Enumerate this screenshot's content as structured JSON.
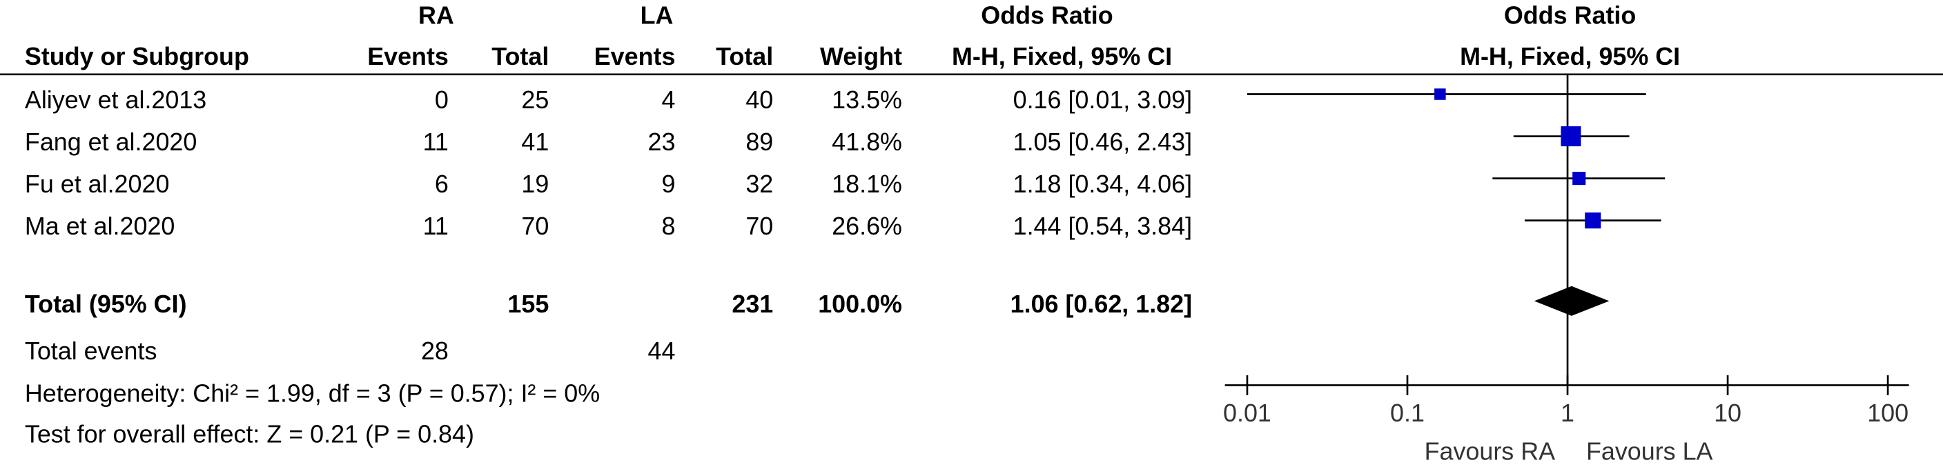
{
  "chart_data": {
    "type": "forest",
    "group_headers": [
      "RA",
      "LA"
    ],
    "effect_header": "Odds Ratio",
    "method_header": "M-H, Fixed, 95% CI",
    "column_headers": [
      "Study or Subgroup",
      "Events",
      "Total",
      "Events",
      "Total",
      "Weight"
    ],
    "studies": [
      {
        "name": "Aliyev et al.2013",
        "ra_events": 0,
        "ra_total": 25,
        "la_events": 4,
        "la_total": 40,
        "weight": 13.5,
        "weight_label": "13.5%",
        "or": 0.16,
        "ci_low": 0.01,
        "ci_high": 3.09,
        "or_label": "0.16 [0.01, 3.09]"
      },
      {
        "name": "Fang et al.2020",
        "ra_events": 11,
        "ra_total": 41,
        "la_events": 23,
        "la_total": 89,
        "weight": 41.8,
        "weight_label": "41.8%",
        "or": 1.05,
        "ci_low": 0.46,
        "ci_high": 2.43,
        "or_label": "1.05 [0.46, 2.43]"
      },
      {
        "name": "Fu et al.2020",
        "ra_events": 6,
        "ra_total": 19,
        "la_events": 9,
        "la_total": 32,
        "weight": 18.1,
        "weight_label": "18.1%",
        "or": 1.18,
        "ci_low": 0.34,
        "ci_high": 4.06,
        "or_label": "1.18 [0.34, 4.06]"
      },
      {
        "name": "Ma et al.2020",
        "ra_events": 11,
        "ra_total": 70,
        "la_events": 8,
        "la_total": 70,
        "weight": 26.6,
        "weight_label": "26.6%",
        "or": 1.44,
        "ci_low": 0.54,
        "ci_high": 3.84,
        "or_label": "1.44 [0.54, 3.84]"
      }
    ],
    "total": {
      "name": "Total (95% CI)",
      "ra_total": 155,
      "la_total": 231,
      "weight": 100,
      "weight_label": "100.0%",
      "or": 1.06,
      "ci_low": 0.62,
      "ci_high": 1.82,
      "or_label": "1.06 [0.62, 1.82]"
    },
    "total_events": {
      "name": "Total events",
      "ra": 28,
      "la": 44
    },
    "heterogeneity": "Heterogeneity: Chi² = 1.99, df = 3 (P = 0.57); I² = 0%",
    "overall_effect": "Test for overall effect: Z = 0.21 (P = 0.84)",
    "xscale": "log",
    "xlim": [
      0.01,
      100
    ],
    "xticks": [
      0.01,
      0.1,
      1,
      10,
      100
    ],
    "xlabels": [
      "Favours RA",
      "Favours LA"
    ],
    "marker_color": "#0000cc",
    "total_color": "#000000"
  }
}
